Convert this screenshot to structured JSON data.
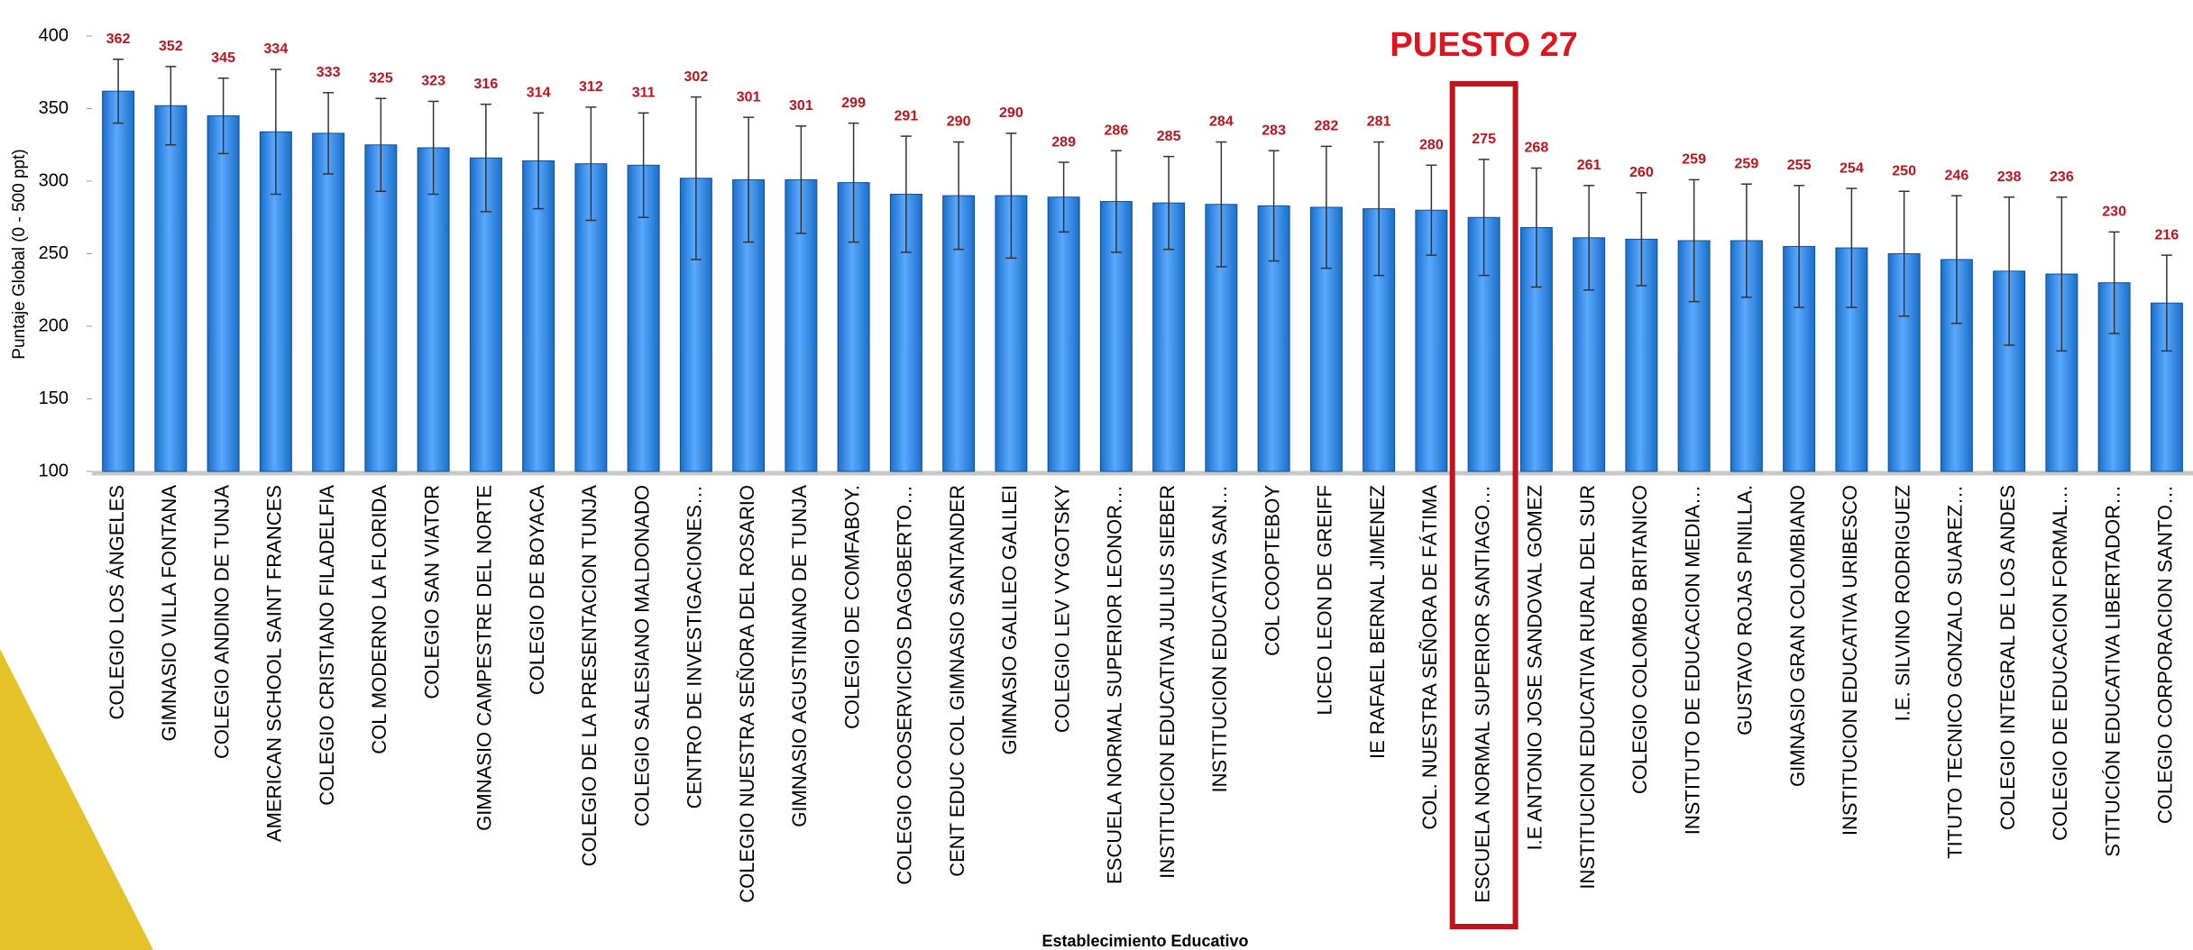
{
  "chart_data": {
    "type": "bar",
    "y_label": "Puntaje Global (0 - 500 ppt)",
    "x_label": "Establecimiento Educativo",
    "annotation": "PUESTO 27",
    "highlight": "ESCUELA NORMAL SUPERIOR SANTIAGO…",
    "color": "#1a6fc8",
    "ylim": [
      100,
      400
    ],
    "yticks": [
      100,
      150,
      200,
      250,
      300,
      350,
      400
    ],
    "grid": false,
    "categories": [
      "COLEGIO LOS ÁNGELES",
      "GIMNASIO VILLA FONTANA",
      "COLEGIO ANDINO DE TUNJA",
      "AMERICAN SCHOOL SAINT FRANCES",
      "COLEGIO CRISTIANO FILADELFIA",
      "COL MODERNO LA FLORIDA",
      "COLEGIO SAN VIATOR",
      "GIMNASIO CAMPESTRE DEL NORTE",
      "COLEGIO DE BOYACA",
      "COLEGIO DE LA PRESENTACION TUNJA",
      "COLEGIO SALESIANO MALDONADO",
      "CENTRO DE INVESTIGACIONES…",
      "COLEGIO NUESTRA SEÑORA DEL ROSARIO",
      "GIMNASIO AGUSTINIANO DE TUNJA",
      "COLEGIO DE COMFABOY.",
      "COLEGIO COOSERVICIOS DAGOBERTO…",
      "CENT EDUC COL GIMNASIO SANTANDER",
      "GIMNASIO GALILEO GALILEI",
      "COLEGIO LEV VYGOTSKY",
      "ESCUELA NORMAL SUPERIOR LEONOR…",
      "INSTITUCION EDUCATIVA JULIUS SIEBER",
      "INSTITUCION EDUCATIVA SAN…",
      "COL COOPTEBOY",
      "LICEO LEON DE GREIFF",
      "IE RAFAEL BERNAL JIMENEZ",
      "COL. NUESTRA SEÑORA DE FÁTIMA",
      "ESCUELA NORMAL SUPERIOR SANTIAGO…",
      "I.E ANTONIO JOSE SANDOVAL GOMEZ",
      "INSTITUCION EDUCATIVA RURAL DEL SUR",
      "COLEGIO COLOMBO BRITANICO",
      "INSTITUTO DE EDUCACION MEDIA…",
      "GUSTAVO ROJAS PINILLA.",
      "GIMNASIO GRAN COLOMBIANO",
      "INSTITUCION EDUCATIVA URIBESCO",
      "I.E. SILVINO RODRIGUEZ",
      "TITUTO TECNICO GONZALO SUAREZ…",
      "COLEGIO INTEGRAL DE LOS ANDES",
      "COLEGIO DE EDUCACION FORMAL…",
      "STITUCIÓN EDUCATIVA LIBERTADOR…",
      "COLEGIO CORPORACION SANTO…"
    ],
    "values": [
      362,
      352,
      345,
      334,
      333,
      325,
      323,
      316,
      314,
      312,
      311,
      302,
      301,
      301,
      299,
      291,
      290,
      290,
      289,
      286,
      285,
      284,
      283,
      282,
      281,
      280,
      275,
      268,
      261,
      260,
      259,
      259,
      255,
      254,
      250,
      246,
      238,
      236,
      230,
      216
    ],
    "errors": [
      22,
      27,
      26,
      43,
      28,
      32,
      32,
      37,
      33,
      39,
      36,
      56,
      43,
      37,
      41,
      40,
      37,
      43,
      24,
      35,
      32,
      43,
      38,
      42,
      46,
      31,
      40,
      41,
      36,
      32,
      42,
      39,
      42,
      41,
      43,
      44,
      51,
      53,
      35,
      33
    ]
  }
}
